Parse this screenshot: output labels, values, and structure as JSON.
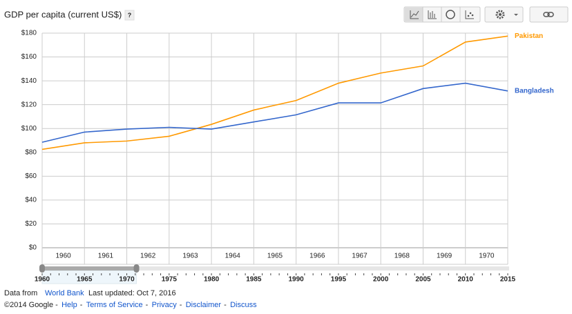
{
  "chart_data": {
    "type": "line",
    "title": "GDP per capita (current US$)",
    "help": "?",
    "categories": [
      "1960",
      "1961",
      "1962",
      "1963",
      "1964",
      "1965",
      "1966",
      "1967",
      "1968",
      "1969",
      "1970"
    ],
    "x": [
      1960,
      1961,
      1962,
      1963,
      1964,
      1965,
      1966,
      1967,
      1968,
      1969,
      1970,
      1971
    ],
    "xlim": [
      1960,
      1971
    ],
    "ylim": [
      0,
      180
    ],
    "yticks": [
      {
        "value": 0,
        "label": "$0"
      },
      {
        "value": 20,
        "label": "$20"
      },
      {
        "value": 40,
        "label": "$40"
      },
      {
        "value": 60,
        "label": "$60"
      },
      {
        "value": 80,
        "label": "$80"
      },
      {
        "value": 100,
        "label": "$100"
      },
      {
        "value": 120,
        "label": "$120"
      },
      {
        "value": 140,
        "label": "$140"
      },
      {
        "value": 160,
        "label": "$160"
      },
      {
        "value": 180,
        "label": "$180"
      }
    ],
    "grid": true,
    "series": [
      {
        "name": "Pakistan",
        "color": "#ff9900",
        "values": [
          82.5,
          88,
          89.5,
          93.5,
          103.5,
          115.5,
          123.5,
          138,
          146.5,
          152.5,
          172.5,
          177.5
        ]
      },
      {
        "name": "Bangladesh",
        "color": "#3366cc",
        "values": [
          88.5,
          97,
          99.5,
          101,
          99.5,
          105.5,
          111.5,
          121.5,
          121.5,
          133.5,
          138,
          131.5
        ]
      }
    ]
  },
  "timeline": {
    "range": [
      1960,
      2015
    ],
    "ticks": [
      1960,
      1965,
      1970,
      1975,
      1980,
      1985,
      1990,
      1995,
      2000,
      2005,
      2010,
      2015
    ],
    "selected": [
      1960,
      1970
    ]
  },
  "footer": {
    "source_prefix": "Data from",
    "source_link": "World Bank",
    "updated": "Last updated: Oct 7, 2016",
    "copyright": "©2014 Google",
    "links": [
      "Help",
      "Terms of Service",
      "Privacy",
      "Disclaimer",
      "Discuss"
    ]
  }
}
